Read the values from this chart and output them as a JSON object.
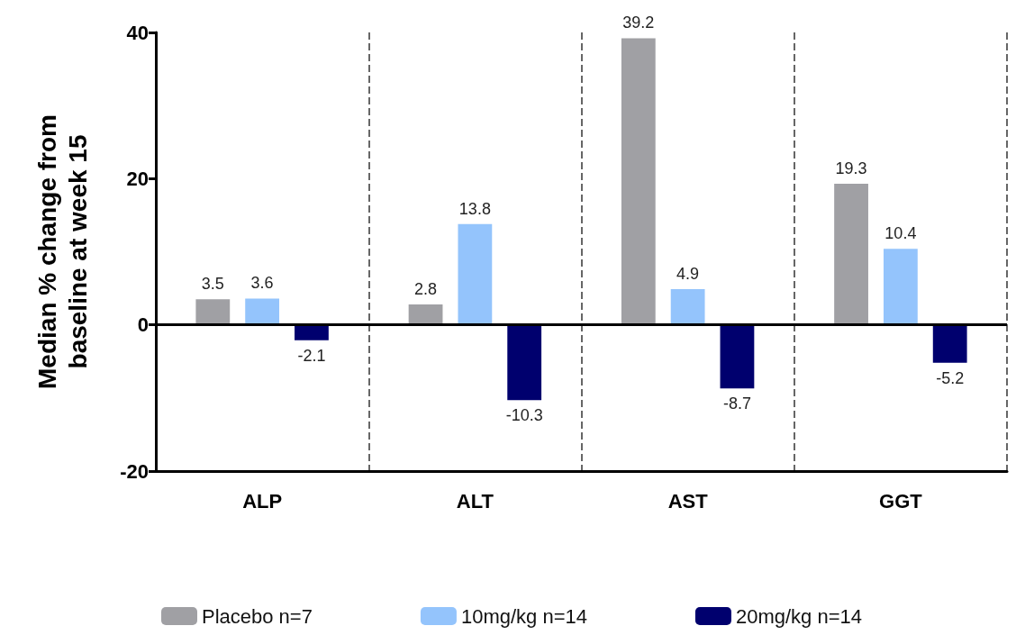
{
  "chart_data": {
    "type": "bar",
    "ylabel": "Median % change from\nbaseline at week 15",
    "categories": [
      "ALP",
      "ALT",
      "AST",
      "GGT"
    ],
    "series": [
      {
        "name": "Placebo n=7",
        "color": "#a0a0a4",
        "values": [
          3.5,
          2.8,
          39.2,
          19.3
        ]
      },
      {
        "name": "10mg/kg n=14",
        "color": "#94c4fc",
        "values": [
          3.6,
          13.8,
          4.9,
          10.4
        ]
      },
      {
        "name": "20mg/kg n=14",
        "color": "#00006e",
        "values": [
          -2.1,
          -10.3,
          -8.7,
          -5.2
        ]
      }
    ],
    "ylim": [
      -20,
      40
    ],
    "yticks": [
      -20,
      0,
      20,
      40
    ],
    "data_labels": true,
    "grid": "x",
    "legend": "bottom",
    "ref_lines": [
      {
        "axis": "y",
        "value": 0,
        "color": "#000000",
        "line_style": "solid"
      }
    ]
  }
}
